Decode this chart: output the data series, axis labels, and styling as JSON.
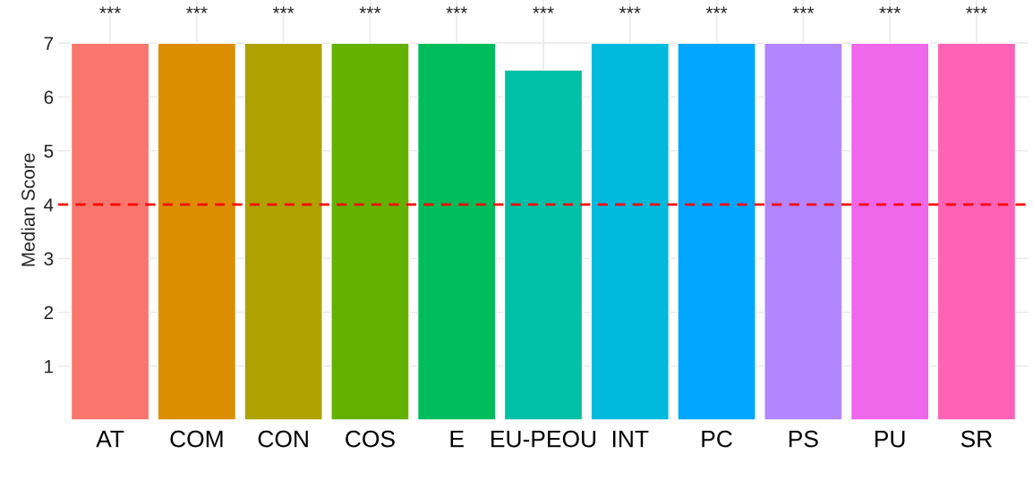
{
  "chart_data": {
    "type": "bar",
    "ylabel": "Median Score",
    "categories": [
      "AT",
      "COM",
      "CON",
      "COS",
      "E",
      "EU-PEOU",
      "INT",
      "PC",
      "PS",
      "PU",
      "SR"
    ],
    "values": [
      7,
      7,
      7,
      7,
      7,
      6.5,
      7,
      7,
      7,
      7,
      7
    ],
    "colors": [
      "#f8766d",
      "#db8e00",
      "#aea200",
      "#64b200",
      "#00bd5c",
      "#00c1a7",
      "#00bade",
      "#00a6ff",
      "#b385ff",
      "#ef67eb",
      "#ff63b6"
    ],
    "ylim": [
      0,
      7.8
    ],
    "yticks": [
      1,
      2,
      3,
      4,
      5,
      6,
      7
    ],
    "grid": true,
    "ref_lines": [
      {
        "axis": "y",
        "value": 4,
        "color": "#ff0000",
        "line_style": "dashed"
      }
    ],
    "annotations": [
      "***",
      "***",
      "***",
      "***",
      "***",
      "***",
      "***",
      "***",
      "***",
      "***",
      "***"
    ]
  }
}
